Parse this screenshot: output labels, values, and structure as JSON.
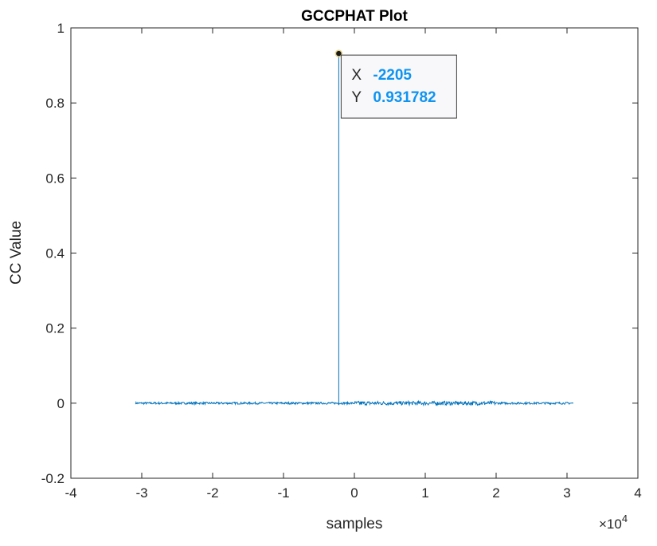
{
  "chart_data": {
    "type": "line",
    "title": "GCCPHAT Plot",
    "xlabel": "samples",
    "ylabel": "CC Value",
    "xlim": [
      -40000,
      40000
    ],
    "ylim": [
      -0.2,
      1
    ],
    "x_ticks": [
      -40000,
      -30000,
      -20000,
      -10000,
      0,
      10000,
      20000,
      30000,
      40000
    ],
    "x_tick_labels": [
      "-4",
      "-3",
      "-2",
      "-1",
      "0",
      "1",
      "2",
      "3",
      "4"
    ],
    "x_exponent_label": "×10",
    "x_exponent_power": "4",
    "y_ticks": [
      -0.2,
      0,
      0.2,
      0.4,
      0.6,
      0.8,
      1
    ],
    "y_tick_labels": [
      "-0.2",
      "0",
      "0.2",
      "0.4",
      "0.6",
      "0.8",
      "1"
    ],
    "grid": false,
    "series": [
      {
        "color": "#0072bd",
        "x_range": [
          -30870,
          30870
        ],
        "baseline": 0,
        "noise_amplitude": 0.004,
        "peak": {
          "x": -2205,
          "y": 0.931782
        }
      }
    ],
    "datatip": {
      "x_key": "X",
      "x_value": "-2205",
      "y_key": "Y",
      "y_value": "0.931782"
    }
  }
}
